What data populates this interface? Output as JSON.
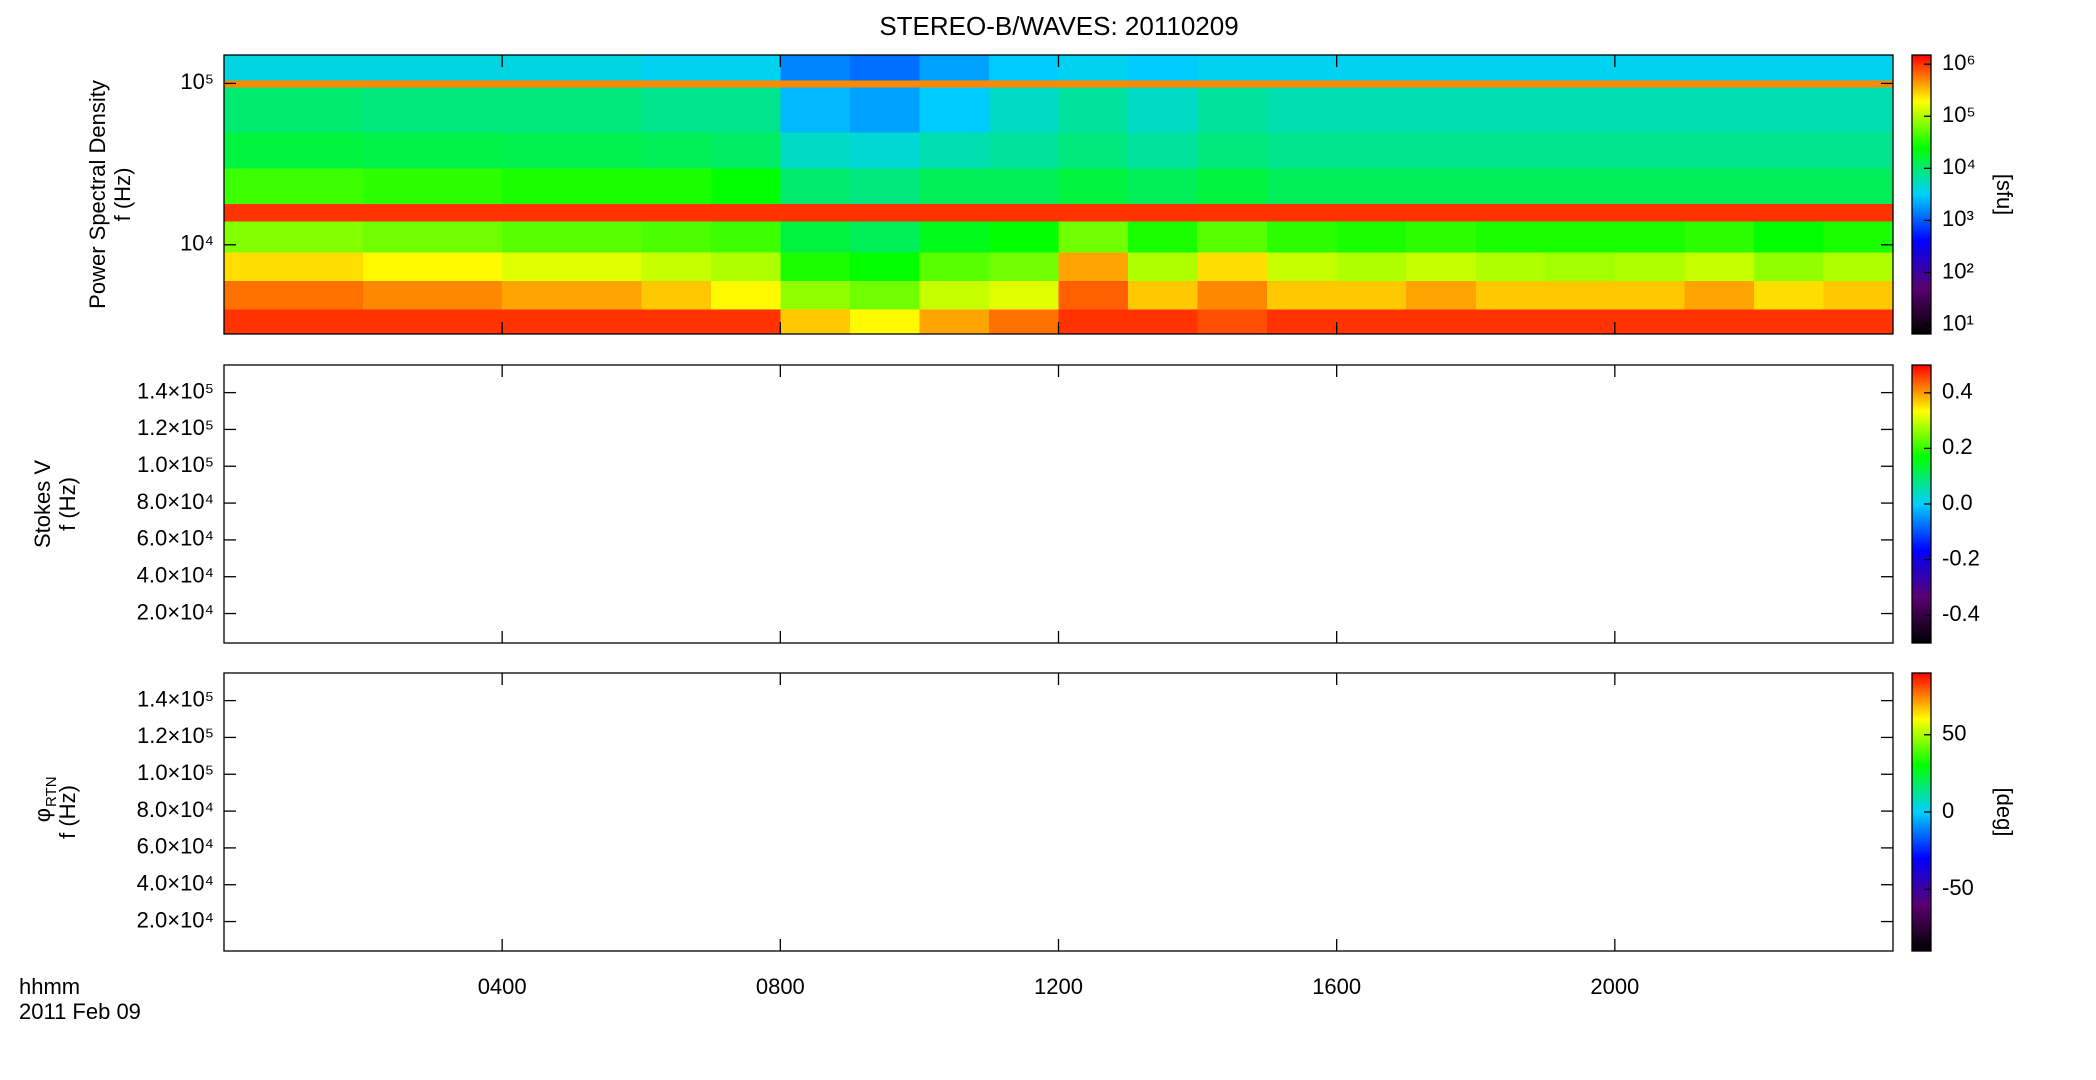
{
  "chart_data": {
    "type": "spectrogram",
    "title": "STEREO-B/WAVES: 20110209",
    "x_label": "hhmm",
    "date_label": "2011 Feb 09",
    "xlim": [
      0,
      24
    ],
    "xticks": [
      {
        "value": 4,
        "label": "0400"
      },
      {
        "value": 8,
        "label": "0800"
      },
      {
        "value": 12,
        "label": "1200"
      },
      {
        "value": 16,
        "label": "1600"
      },
      {
        "value": 20,
        "label": "2000"
      }
    ],
    "colormap": [
      "#000000",
      "#5a0070",
      "#0000ff",
      "#00d0ff",
      "#00ff00",
      "#ffff00",
      "#ff0000"
    ],
    "panels": [
      {
        "type": "heatmap",
        "ylabel": [
          "Power Spectral Density",
          "f (Hz)"
        ],
        "yscale": "log",
        "ylim": [
          2800,
          150000
        ],
        "yticks": [
          {
            "value": 10000,
            "label": "10⁴"
          },
          {
            "value": 100000,
            "label": "10⁵"
          }
        ],
        "times": [
          0,
          1,
          2,
          3,
          4,
          5,
          6,
          7,
          8,
          9,
          10,
          11,
          12,
          13,
          14,
          15,
          16,
          17,
          18,
          19,
          20,
          21,
          22,
          23,
          24
        ],
        "frequencies": [
          2800,
          4000,
          6000,
          9000,
          14000,
          18000,
          30000,
          50000,
          95000,
          105000,
          150000
        ],
        "z": [
          [
            1000000,
            1000000,
            1000000,
            1000000,
            1000000,
            1000000,
            1000000,
            1000000,
            300000,
            200000,
            400000,
            600000,
            1000000,
            1000000,
            800000,
            1000000,
            1000000,
            1000000,
            1000000,
            1000000,
            1000000,
            1000000,
            1000000,
            1000000
          ],
          [
            600000,
            600000,
            500000,
            500000,
            400000,
            400000,
            300000,
            200000,
            80000,
            60000,
            120000,
            150000,
            700000,
            300000,
            500000,
            300000,
            300000,
            400000,
            300000,
            300000,
            300000,
            400000,
            250000,
            300000
          ],
          [
            250000,
            250000,
            200000,
            200000,
            150000,
            150000,
            120000,
            100000,
            30000,
            25000,
            50000,
            60000,
            400000,
            100000,
            250000,
            120000,
            100000,
            120000,
            100000,
            90000,
            100000,
            120000,
            80000,
            100000
          ],
          [
            70000,
            70000,
            60000,
            60000,
            50000,
            50000,
            45000,
            40000,
            15000,
            12000,
            20000,
            25000,
            60000,
            30000,
            50000,
            35000,
            30000,
            35000,
            30000,
            30000,
            30000,
            35000,
            25000,
            30000
          ],
          [
            1000000,
            1000000,
            1000000,
            1000000,
            1000000,
            1000000,
            1000000,
            1000000,
            1000000,
            1000000,
            1000000,
            1000000,
            1000000,
            1000000,
            1000000,
            1000000,
            1000000,
            1000000,
            1000000,
            1000000,
            1000000,
            1000000,
            1000000,
            1000000
          ],
          [
            40000,
            40000,
            35000,
            35000,
            30000,
            30000,
            30000,
            25000,
            10000,
            9000,
            12000,
            12000,
            15000,
            12000,
            15000,
            12000,
            12000,
            12000,
            12000,
            12000,
            12000,
            12000,
            12000,
            12000
          ],
          [
            15000,
            15000,
            14000,
            14000,
            13000,
            13000,
            12000,
            11000,
            5000,
            4500,
            6000,
            7000,
            9000,
            7000,
            9000,
            8000,
            8000,
            8000,
            8000,
            8000,
            8000,
            8000,
            8000,
            8000
          ],
          [
            10000,
            10000,
            9000,
            9000,
            9000,
            9000,
            8000,
            8000,
            2500,
            2000,
            3000,
            5000,
            7000,
            5000,
            7000,
            6000,
            6000,
            6000,
            6000,
            6000,
            6000,
            6000,
            6000,
            6000
          ],
          [
            500000,
            500000,
            500000,
            500000,
            500000,
            500000,
            500000,
            500000,
            500000,
            500000,
            500000,
            500000,
            500000,
            500000,
            500000,
            500000,
            500000,
            500000,
            500000,
            500000,
            500000,
            500000,
            500000,
            500000
          ],
          [
            4000,
            4000,
            4000,
            4000,
            4000,
            4000,
            3500,
            3500,
            1500,
            1200,
            2000,
            3000,
            3500,
            3000,
            3500,
            3500,
            3500,
            3500,
            3500,
            3500,
            3500,
            3500,
            3500,
            3500
          ]
        ],
        "cscale": "log",
        "clim": [
          6.6,
          1500000
        ],
        "cticks": [
          {
            "value": 10,
            "label": "10¹"
          },
          {
            "value": 100,
            "label": "10²"
          },
          {
            "value": 1000,
            "label": "10³"
          },
          {
            "value": 10000,
            "label": "10⁴"
          },
          {
            "value": 100000,
            "label": "10⁵"
          },
          {
            "value": 1000000,
            "label": "10⁶"
          }
        ],
        "clabel": "[sfu]"
      },
      {
        "type": "heatmap",
        "ylabel": [
          "Stokes V",
          "f (Hz)"
        ],
        "yscale": "linear",
        "ylim": [
          4000,
          155000
        ],
        "yticks": [
          {
            "value": 20000,
            "label": "2.0×10⁴"
          },
          {
            "value": 40000,
            "label": "4.0×10⁴"
          },
          {
            "value": 60000,
            "label": "6.0×10⁴"
          },
          {
            "value": 80000,
            "label": "8.0×10⁴"
          },
          {
            "value": 100000,
            "label": "1.0×10⁵"
          },
          {
            "value": 120000,
            "label": "1.2×10⁵"
          },
          {
            "value": 140000,
            "label": "1.4×10⁵"
          }
        ],
        "cscale": "linear",
        "clim": [
          -0.5,
          0.5
        ],
        "cticks": [
          -0.4,
          -0.2,
          {
            "value": 0,
            "label": "0.0"
          },
          0.2,
          0.4
        ]
      },
      {
        "type": "heatmap",
        "ylabel": [
          "φ",
          "f (Hz)"
        ],
        "ylabel_subscript": "RTN",
        "yscale": "linear",
        "ylim": [
          4000,
          155000
        ],
        "yticks": [
          {
            "value": 20000,
            "label": "2.0×10⁴"
          },
          {
            "value": 40000,
            "label": "4.0×10⁴"
          },
          {
            "value": 60000,
            "label": "6.0×10⁴"
          },
          {
            "value": 80000,
            "label": "8.0×10⁴"
          },
          {
            "value": 100000,
            "label": "1.0×10⁵"
          },
          {
            "value": 120000,
            "label": "1.2×10⁵"
          },
          {
            "value": 140000,
            "label": "1.4×10⁵"
          }
        ],
        "cscale": "linear",
        "clim": [
          -90,
          90
        ],
        "cticks": [
          -50,
          0,
          50
        ],
        "clabel": "[deg]"
      }
    ]
  }
}
